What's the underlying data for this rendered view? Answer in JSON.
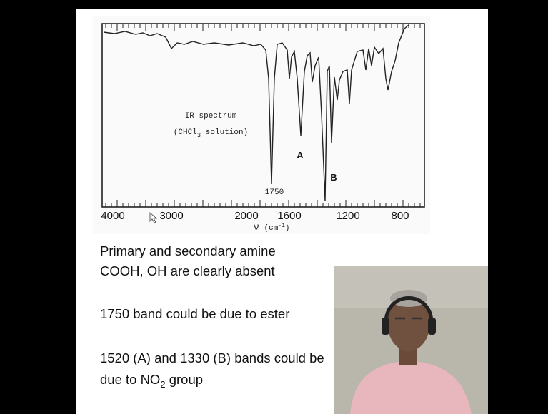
{
  "figure": {
    "label": "IR spectrum",
    "solvent": {
      "before": "(CHCl",
      "subscript": "3",
      "after": " solution)"
    },
    "peak_label": "1750",
    "band_a": "A",
    "band_b": "B",
    "axis_labels": [
      "4000",
      "3000",
      "2000",
      "1600",
      "1200",
      "800"
    ],
    "axis_title": {
      "symbol": "ν",
      "unit": " (cm",
      "exponent": "-1",
      "close": ")"
    }
  },
  "notes": {
    "lines": [
      "Primary and secondary amine",
      "COOH, OH are clearly absent",
      "1750 band could be due to ester",
      "1520 (A) and 1330 (B) bands could be"
    ],
    "last_line": {
      "before": "due to NO",
      "subscript": "2",
      "after": " group"
    }
  }
}
